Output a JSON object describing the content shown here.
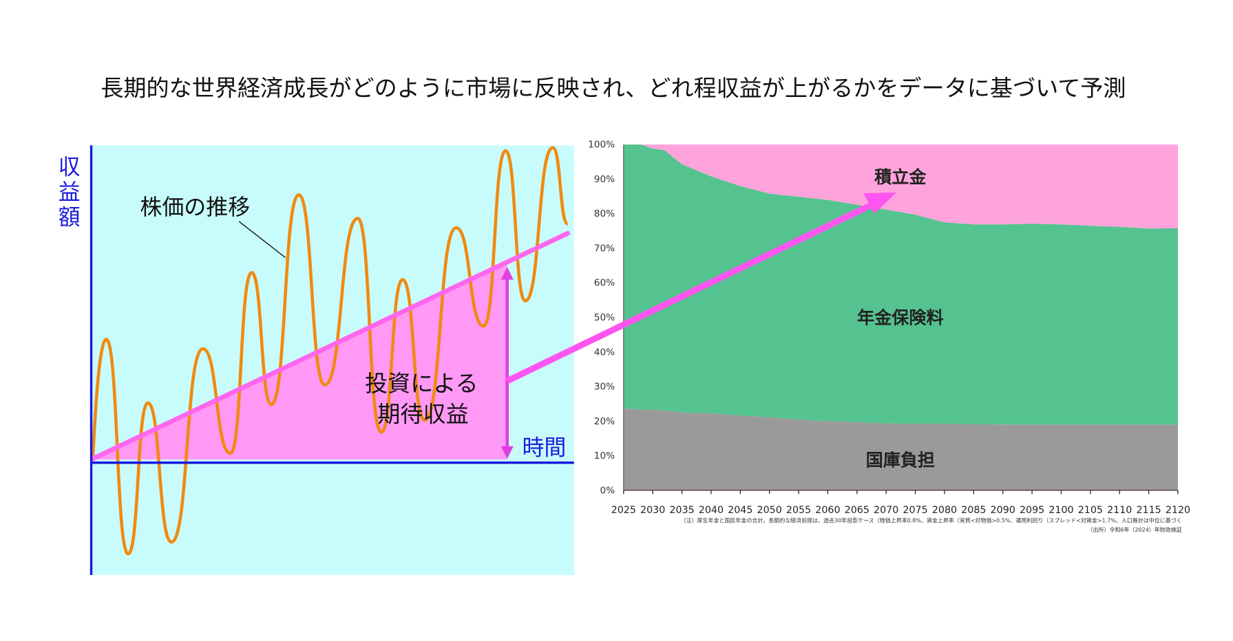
{
  "title": "長期的な世界経済成長がどのように市場に反映され、どれ程収益が上がるかをデータに基づいて予測",
  "illustration": {
    "y_axis_label": [
      "収",
      "益",
      "額"
    ],
    "x_axis_label": "時間",
    "stock_label": "株価の推移",
    "return_label_line1": "投資による",
    "return_label_line2": "期待収益",
    "colors": {
      "background": "#c8fcfc",
      "axis": "#1a1adc",
      "wave": "#f08a10",
      "trend": "#ff66ee",
      "area": "#ff99f5"
    }
  },
  "chart_data": {
    "type": "area",
    "stacked": true,
    "percent": true,
    "x": [
      2025,
      2028,
      2030,
      2032,
      2035,
      2040,
      2045,
      2050,
      2055,
      2060,
      2065,
      2070,
      2075,
      2080,
      2085,
      2090,
      2095,
      2100,
      2105,
      2110,
      2115,
      2120
    ],
    "series": [
      {
        "name": "国庫負担",
        "color": "#9a9a9a",
        "values": [
          23.6,
          23.4,
          23.3,
          23.0,
          22.5,
          22.2,
          21.6,
          21.1,
          20.4,
          20.0,
          19.7,
          19.3,
          19.2,
          19.2,
          19.1,
          19.0,
          19.0,
          19.0,
          19.0,
          19.0,
          19.0,
          19.0
        ]
      },
      {
        "name": "年金保険料",
        "color": "#55c38f",
        "values": [
          76.4,
          76.6,
          75.5,
          75.4,
          71.8,
          68.6,
          66.4,
          64.7,
          64.5,
          64.0,
          62.9,
          61.9,
          60.5,
          58.3,
          57.8,
          57.9,
          58.1,
          57.9,
          57.5,
          57.2,
          56.7,
          56.8
        ]
      },
      {
        "name": "積立金",
        "color": "#ffa3dc",
        "values": [
          0,
          0,
          1.2,
          1.6,
          5.7,
          9.2,
          12.0,
          14.2,
          15.1,
          16.0,
          17.4,
          18.8,
          20.3,
          22.5,
          23.1,
          23.1,
          22.9,
          23.1,
          23.5,
          23.8,
          24.3,
          24.2
        ]
      }
    ],
    "ylim": [
      0,
      100
    ],
    "xlim": [
      2025,
      2120
    ],
    "yticks": [
      "0%",
      "10%",
      "20%",
      "30%",
      "40%",
      "50%",
      "60%",
      "70%",
      "80%",
      "90%",
      "100%"
    ],
    "xticks": [
      "2025",
      "2030",
      "2035",
      "2040",
      "2045",
      "2050",
      "2055",
      "2060",
      "2065",
      "2070",
      "2075",
      "2080",
      "2085",
      "2090",
      "2095",
      "2100",
      "2105",
      "2110",
      "2115",
      "2120"
    ],
    "grid": false,
    "legend": "inline labels",
    "note": "（注）厚生年金と国民年金の合計。長期的な経済前提は、過去30年投影ケース（物価上昇率0.8%、賃金上昇率（実質<対物価>0.5%、運用利回り（スプレッド<対賃金>1.7%、人口推計は中位に基づく",
    "source": "（出所）令和6年（2024）年財政検証"
  }
}
